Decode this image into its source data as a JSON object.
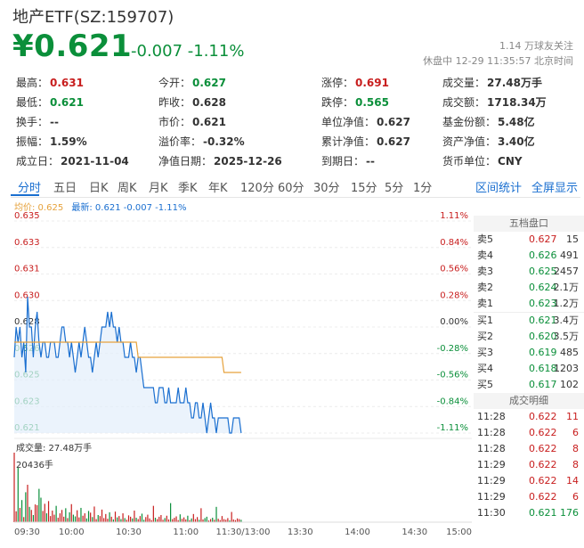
{
  "header": {
    "title": "地产ETF(SZ:159707)",
    "price": "¥0.621",
    "change": "-0.007 -1.11%",
    "followers": "1.14 万球友关注",
    "status": "休盘中 12-29 11:35:57 北京时间"
  },
  "stats": [
    [
      {
        "label": "最高：",
        "value": "0.631",
        "color": "red"
      },
      {
        "label": "今开：",
        "value": "0.627",
        "color": "green"
      },
      {
        "label": "涨停：",
        "value": "0.691",
        "color": "red"
      },
      {
        "label": "成交量：",
        "value": "27.48万手",
        "color": ""
      }
    ],
    [
      {
        "label": "最低：",
        "value": "0.621",
        "color": "green"
      },
      {
        "label": "昨收：",
        "value": "0.628",
        "color": ""
      },
      {
        "label": "跌停：",
        "value": "0.565",
        "color": "green"
      },
      {
        "label": "成交额：",
        "value": "1718.34万",
        "color": ""
      }
    ],
    [
      {
        "label": "换手：",
        "value": "--",
        "color": ""
      },
      {
        "label": "市价：",
        "value": "0.621",
        "color": ""
      },
      {
        "label": "单位净值：",
        "value": "0.627",
        "color": ""
      },
      {
        "label": "基金份额：",
        "value": "5.48亿",
        "color": ""
      }
    ],
    [
      {
        "label": "振幅：",
        "value": "1.59%",
        "color": ""
      },
      {
        "label": "溢价率：",
        "value": "-0.32%",
        "color": ""
      },
      {
        "label": "累计净值：",
        "value": "0.627",
        "color": ""
      },
      {
        "label": "资产净值：",
        "value": "3.40亿",
        "color": ""
      }
    ],
    [
      {
        "label": "成立日：",
        "value": "2021-11-04",
        "color": ""
      },
      {
        "label": "净值日期：",
        "value": "2025-12-26",
        "color": ""
      },
      {
        "label": "到期日：",
        "value": "--",
        "color": ""
      },
      {
        "label": "货币单位：",
        "value": "CNY",
        "color": ""
      }
    ]
  ],
  "tabs": [
    "分时",
    "五日",
    "日K",
    "周K",
    "月K",
    "季K",
    "年K",
    "120分",
    "60分",
    "30分",
    "15分",
    "5分",
    "1分"
  ],
  "tab_links": [
    "区间统计",
    "全屏显示"
  ],
  "legend": {
    "avg": "均价: 0.625",
    "latest": "最新: 0.621 -0.007 -1.11%"
  },
  "chart_data": {
    "type": "line",
    "y_labels": [
      "0.635",
      "0.633",
      "0.631",
      "0.630",
      "0.628",
      "0.626",
      "0.625",
      "0.623",
      "0.621"
    ],
    "pct_labels": [
      "1.11%",
      "0.84%",
      "0.56%",
      "0.28%",
      "0.00%",
      "-0.28%",
      "-0.56%",
      "-0.84%",
      "-1.11%"
    ],
    "ylim": [
      0.621,
      0.635
    ],
    "prev_close": 0.628,
    "x_labels": [
      "09:30",
      "10:00",
      "10:30",
      "11:00",
      "11:30/13:00",
      "13:30",
      "14:00",
      "14:30",
      "15:00"
    ],
    "total_minutes": 240,
    "series": [
      {
        "values": [
          0.626,
          0.628,
          0.627,
          0.628,
          0.626,
          0.627,
          0.625,
          0.63,
          0.628,
          0.628,
          0.626,
          0.628,
          0.629,
          0.627,
          0.626,
          0.627,
          0.627,
          0.626,
          0.626,
          0.627,
          0.627,
          0.627,
          0.626,
          0.626,
          0.627,
          0.628,
          0.628,
          0.627,
          0.627,
          0.626,
          0.627,
          0.626,
          0.625,
          0.626,
          0.627,
          0.626,
          0.627,
          0.628,
          0.627,
          0.626,
          0.626,
          0.625,
          0.626,
          0.627,
          0.626,
          0.627,
          0.628,
          0.628,
          0.628,
          0.629,
          0.628,
          0.629,
          0.628,
          0.628,
          0.627,
          0.628,
          0.627,
          0.627,
          0.626,
          0.626,
          0.626,
          0.627,
          0.626,
          0.626,
          0.625,
          0.626,
          0.626,
          0.625,
          0.624,
          0.624,
          0.624,
          0.624,
          0.624,
          0.624,
          0.623,
          0.623,
          0.624,
          0.624,
          0.624,
          0.623,
          0.623,
          0.624,
          0.623,
          0.623,
          0.623,
          0.623,
          0.624,
          0.623,
          0.623,
          0.623,
          0.624,
          0.623,
          0.623,
          0.622,
          0.622,
          0.623,
          0.623,
          0.622,
          0.622,
          0.623,
          0.622,
          0.621,
          0.622,
          0.623,
          0.622,
          0.622,
          0.621,
          0.622,
          0.622,
          0.622,
          0.622,
          0.622,
          0.622,
          0.621,
          0.621,
          0.622,
          0.622,
          0.622,
          0.622,
          0.621
        ]
      },
      {
        "values": [
          0.627,
          0.627,
          0.627,
          0.627,
          0.627,
          0.627,
          0.627,
          0.627,
          0.627,
          0.627,
          0.627,
          0.627,
          0.627,
          0.627,
          0.627,
          0.627,
          0.627,
          0.627,
          0.627,
          0.627,
          0.627,
          0.627,
          0.627,
          0.627,
          0.627,
          0.627,
          0.627,
          0.627,
          0.627,
          0.627,
          0.627,
          0.627,
          0.627,
          0.627,
          0.627,
          0.627,
          0.627,
          0.627,
          0.627,
          0.627,
          0.627,
          0.627,
          0.627,
          0.627,
          0.627,
          0.627,
          0.627,
          0.627,
          0.627,
          0.627,
          0.627,
          0.627,
          0.627,
          0.627,
          0.627,
          0.627,
          0.627,
          0.627,
          0.627,
          0.627,
          0.627,
          0.627,
          0.627,
          0.627,
          0.627,
          0.626,
          0.626,
          0.626,
          0.626,
          0.626,
          0.626,
          0.626,
          0.626,
          0.626,
          0.626,
          0.626,
          0.626,
          0.626,
          0.626,
          0.626,
          0.626,
          0.626,
          0.626,
          0.626,
          0.626,
          0.626,
          0.626,
          0.626,
          0.626,
          0.626,
          0.626,
          0.626,
          0.626,
          0.626,
          0.626,
          0.626,
          0.626,
          0.626,
          0.626,
          0.626,
          0.626,
          0.626,
          0.626,
          0.626,
          0.626,
          0.626,
          0.626,
          0.626,
          0.626,
          0.626,
          0.625,
          0.625,
          0.625,
          0.625,
          0.625,
          0.625,
          0.625,
          0.625,
          0.625,
          0.625
        ]
      }
    ],
    "volume_label": "成交量: 27.48万手",
    "volume_max_label": "20436手",
    "volume_max": 20436,
    "volume": [
      20436,
      3200,
      16000,
      4200,
      6500,
      1500,
      8800,
      11000,
      4500,
      3600,
      2100,
      5200,
      5000,
      9800,
      7200,
      3300,
      5400,
      2600,
      6200,
      1800,
      3400,
      2200,
      4800,
      1300,
      2600,
      3600,
      1600,
      4100,
      1200,
      2900,
      5300,
      2200,
      1700,
      3500,
      1400,
      4200,
      1900,
      2600,
      1100,
      3300,
      2800,
      1500,
      4600,
      900,
      2100,
      1800,
      3700,
      1200,
      2400,
      1000,
      2900,
      1600,
      800,
      3100,
      1400,
      1800,
      900,
      2600,
      1200,
      700,
      2000,
      1600,
      1100,
      3400,
      1300,
      900,
      1800,
      2500,
      700,
      1500,
      2200,
      1100,
      600,
      4800,
      1300,
      900,
      1600,
      2100,
      700,
      1200,
      1900,
      800,
      5600,
      900,
      1300,
      1700,
      600,
      2300,
      1000,
      1400,
      800,
      1900,
      600,
      1100,
      2400,
      900,
      1500,
      700,
      4100,
      800,
      1200,
      1600,
      500,
      900,
      1300,
      700,
      4500,
      1000,
      600,
      1800,
      900,
      700,
      1200,
      500,
      3000,
      800,
      600,
      1100,
      900,
      700
    ]
  },
  "orderbook": {
    "title": "五档盘口",
    "asks": [
      {
        "label": "卖5",
        "price": "0.627",
        "vol": "15",
        "color": "red"
      },
      {
        "label": "卖4",
        "price": "0.626",
        "vol": "491",
        "color": "green"
      },
      {
        "label": "卖3",
        "price": "0.625",
        "vol": "2457",
        "color": "green"
      },
      {
        "label": "卖2",
        "price": "0.624",
        "vol": "2.1万",
        "color": "green"
      },
      {
        "label": "卖1",
        "price": "0.623",
        "vol": "1.2万",
        "color": "green"
      }
    ],
    "bids": [
      {
        "label": "买1",
        "price": "0.621",
        "vol": "3.4万",
        "color": "green"
      },
      {
        "label": "买2",
        "price": "0.620",
        "vol": "3.5万",
        "color": "green"
      },
      {
        "label": "买3",
        "price": "0.619",
        "vol": "485",
        "color": "green"
      },
      {
        "label": "买4",
        "price": "0.618",
        "vol": "1203",
        "color": "green"
      },
      {
        "label": "买5",
        "price": "0.617",
        "vol": "102",
        "color": "green"
      }
    ],
    "trades_title": "成交明细",
    "trades": [
      {
        "time": "11:28",
        "price": "0.622",
        "vol": "11",
        "color": "red"
      },
      {
        "time": "11:28",
        "price": "0.622",
        "vol": "6",
        "color": "red"
      },
      {
        "time": "11:28",
        "price": "0.622",
        "vol": "8",
        "color": "red"
      },
      {
        "time": "11:29",
        "price": "0.622",
        "vol": "8",
        "color": "red"
      },
      {
        "time": "11:29",
        "price": "0.622",
        "vol": "14",
        "color": "red"
      },
      {
        "time": "11:29",
        "price": "0.622",
        "vol": "6",
        "color": "red"
      },
      {
        "time": "11:30",
        "price": "0.621",
        "vol": "176",
        "color": "green"
      }
    ]
  },
  "colors": {
    "up": "#c81e1e",
    "down": "#0b8f3a",
    "price_line": "#1a6fd0",
    "avg_line": "#e6a23c",
    "accent": "#1a6fd0"
  }
}
